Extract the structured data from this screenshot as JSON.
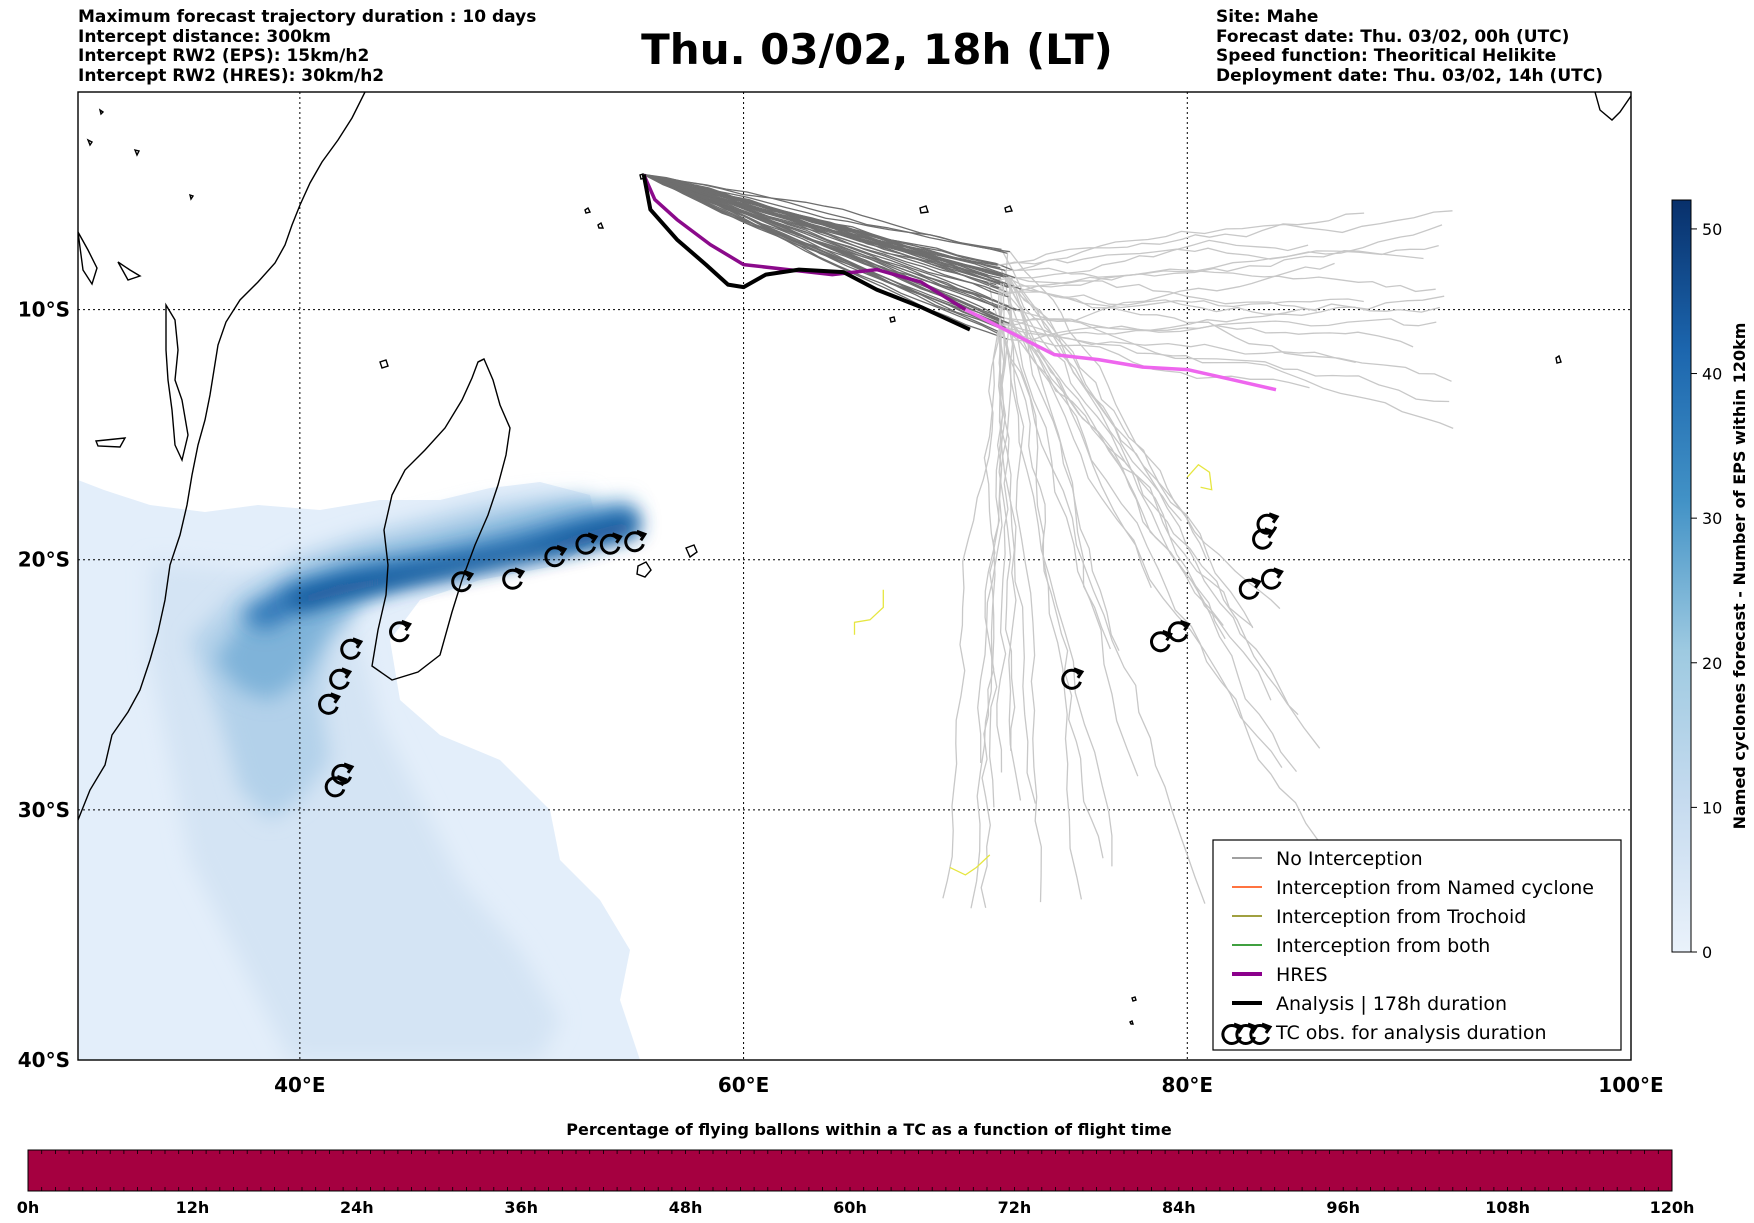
{
  "header": {
    "left": [
      "Maximum forecast trajectory duration : 10 days",
      "Intercept distance: 300km",
      "Intercept RW2 (EPS):  15km/h2",
      "Intercept RW2 (HRES): 30km/h2"
    ],
    "title": "Thu. 03/02, 18h (LT)",
    "right": [
      "Site: Mahe",
      "Forecast date: Thu. 03/02, 00h (UTC)",
      "Speed function: Theoritical Helikite",
      "Deployment date: Thu. 03/02, 14h (UTC)"
    ]
  },
  "map": {
    "lon_range": [
      30,
      100
    ],
    "lat_range": [
      -40,
      -1.3
    ],
    "lon_ticks": [
      {
        "value": 40,
        "label": "40°E"
      },
      {
        "value": 60,
        "label": "60°E"
      },
      {
        "value": 80,
        "label": "80°E"
      },
      {
        "value": 100,
        "label": "100°E"
      }
    ],
    "lat_ticks": [
      {
        "value": -10,
        "label": "10°S"
      },
      {
        "value": -20,
        "label": "20°S"
      },
      {
        "value": -30,
        "label": "30°S"
      },
      {
        "value": -40,
        "label": "40°S"
      }
    ],
    "site": {
      "name": "Mahe",
      "lon": 55.5,
      "lat": -4.6
    },
    "colors": {
      "ens_near": "#6e6e6e",
      "ens_far": "#c8c8c8",
      "hres_near": "#8b0a8b",
      "hres_far": "#ee66ee",
      "analysis": "#000000",
      "trochoid": "#e6e640",
      "density_low": "#deebf7",
      "density_high": "#08306b"
    },
    "hres_track": [
      [
        55.5,
        -4.6
      ],
      [
        56,
        -5.6
      ],
      [
        57,
        -6.4
      ],
      [
        58.5,
        -7.4
      ],
      [
        60,
        -8.2
      ],
      [
        62,
        -8.4
      ],
      [
        64,
        -8.6
      ],
      [
        66,
        -8.4
      ],
      [
        68,
        -8.9
      ],
      [
        70,
        -10
      ],
      [
        72,
        -10.9
      ],
      [
        74,
        -11.8
      ],
      [
        76,
        -12
      ],
      [
        78,
        -12.3
      ],
      [
        80,
        -12.4
      ],
      [
        82,
        -12.8
      ],
      [
        84,
        -13.2
      ]
    ],
    "analysis_track": [
      [
        55.5,
        -4.6
      ],
      [
        55.8,
        -6
      ],
      [
        57,
        -7.2
      ],
      [
        58.3,
        -8.2
      ],
      [
        59.3,
        -9
      ],
      [
        60,
        -9.1
      ],
      [
        61,
        -8.6
      ],
      [
        62.5,
        -8.4
      ],
      [
        64.5,
        -8.5
      ],
      [
        66,
        -9.2
      ],
      [
        68,
        -9.9
      ],
      [
        70.2,
        -10.8
      ]
    ],
    "trochoid_tracks": [
      [
        [
          80,
          -16.7
        ],
        [
          80.5,
          -16.2
        ],
        [
          81,
          -16.5
        ],
        [
          81.1,
          -17.2
        ],
        [
          80.6,
          -17.1
        ]
      ],
      [
        [
          65,
          -23
        ],
        [
          65,
          -22.5
        ],
        [
          65.7,
          -22.4
        ],
        [
          66.3,
          -21.9
        ],
        [
          66.3,
          -21.2
        ]
      ],
      [
        [
          69.3,
          -32.3
        ],
        [
          70,
          -32.6
        ],
        [
          70.5,
          -32.3
        ],
        [
          71.1,
          -31.8
        ]
      ]
    ],
    "tc_obs": [
      [
        41.3,
        -25.8
      ],
      [
        41.8,
        -24.8
      ],
      [
        42.3,
        -23.6
      ],
      [
        44.5,
        -22.9
      ],
      [
        47.3,
        -20.9
      ],
      [
        49.6,
        -20.8
      ],
      [
        51.5,
        -19.9
      ],
      [
        52.9,
        -19.4
      ],
      [
        54,
        -19.4
      ],
      [
        55.1,
        -19.3
      ],
      [
        41.6,
        -29.1
      ],
      [
        41.9,
        -28.6
      ],
      [
        74.8,
        -24.8
      ],
      [
        78.8,
        -23.3
      ],
      [
        79.6,
        -22.9
      ],
      [
        82.8,
        -21.2
      ],
      [
        83.8,
        -20.8
      ],
      [
        83.4,
        -19.2
      ],
      [
        83.6,
        -18.6
      ]
    ]
  },
  "density_colorbar": {
    "label": "Named cyclones forecast - Number of EPS within 120km",
    "ticks": [
      "0",
      "10",
      "20",
      "30",
      "40",
      "50"
    ],
    "max": 52
  },
  "legend": {
    "items": [
      {
        "label": "No Interception",
        "color": "#808080",
        "width": 1.5
      },
      {
        "label": "Interception from Named cyclone",
        "color": "#ff4500",
        "width": 1.5
      },
      {
        "label": "Interception from Trochoid",
        "color": "#808000",
        "width": 1.5
      },
      {
        "label": "Interception from both",
        "color": "#008000",
        "width": 1.5
      },
      {
        "label": "HRES",
        "color": "#8b008b",
        "width": 4
      },
      {
        "label": "Analysis | 178h duration",
        "color": "#000000",
        "width": 4
      },
      {
        "label": "TC obs. for analysis duration",
        "color": "#000000",
        "width": 0
      }
    ]
  },
  "flight_bar": {
    "title": "Percentage of flying ballons within a TC as a function of flight time",
    "color": "#a50040",
    "ticks": [
      "0h",
      "12h",
      "24h",
      "36h",
      "48h",
      "60h",
      "72h",
      "84h",
      "96h",
      "108h",
      "120h"
    ]
  }
}
